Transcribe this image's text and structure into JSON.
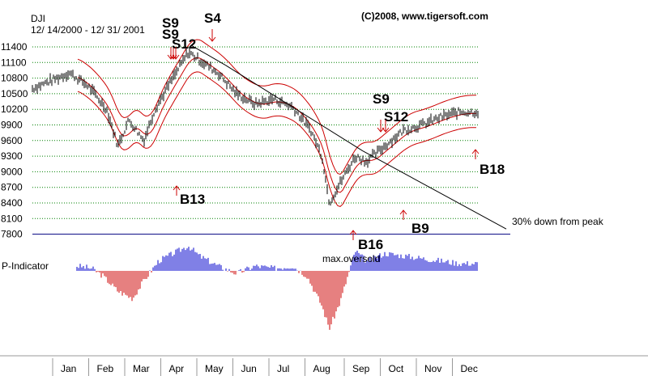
{
  "header": {
    "symbol": "DJI",
    "date_range": "12/ 14/2000 - 12/ 31/ 2001",
    "copyright": "(C)2008, www.tigersoft.com"
  },
  "indicator_label": "P-Indicator",
  "annotations": {
    "max_oversold": "max.oversold",
    "trendline_note": "30% down from peak"
  },
  "colors": {
    "price": "#000000",
    "bands": "#cc0000",
    "grid": "#008000",
    "baseline": "#000080",
    "positive": "#0000cc",
    "negative": "#cc0000",
    "signal_arrow": "#cc0000"
  },
  "chart_data": {
    "type": "line",
    "title": "DJI",
    "y_ticks": [
      11400,
      11100,
      10800,
      10500,
      10200,
      9900,
      9600,
      9300,
      9000,
      8700,
      8400,
      8100,
      7800
    ],
    "ylim": [
      7800,
      11600
    ],
    "months": [
      "Jan",
      "Feb",
      "Mar",
      "Apr",
      "May",
      "Jun",
      "Jul",
      "Aug",
      "Sep",
      "Oct",
      "Nov",
      "Dec"
    ],
    "grid": true,
    "series": [
      {
        "values": [
          {
            "m": 0.0,
            "v": 10600
          },
          {
            "m": 0.5,
            "v": 10750
          },
          {
            "m": 1.0,
            "v": 10900
          },
          {
            "m": 1.5,
            "v": 10650
          },
          {
            "m": 2.0,
            "v": 10200
          },
          {
            "m": 2.3,
            "v": 9500
          },
          {
            "m": 2.6,
            "v": 10000
          },
          {
            "m": 3.0,
            "v": 9600
          },
          {
            "m": 3.3,
            "v": 10200
          },
          {
            "m": 3.7,
            "v": 10700
          },
          {
            "m": 4.2,
            "v": 11300
          },
          {
            "m": 4.6,
            "v": 11100
          },
          {
            "m": 5.0,
            "v": 10900
          },
          {
            "m": 5.5,
            "v": 10500
          },
          {
            "m": 6.0,
            "v": 10300
          },
          {
            "m": 6.5,
            "v": 10400
          },
          {
            "m": 7.0,
            "v": 10250
          },
          {
            "m": 7.5,
            "v": 9800
          },
          {
            "m": 7.8,
            "v": 9300
          },
          {
            "m": 8.0,
            "v": 8400
          },
          {
            "m": 8.3,
            "v": 8800
          },
          {
            "m": 8.7,
            "v": 9300
          },
          {
            "m": 9.0,
            "v": 9200
          },
          {
            "m": 9.5,
            "v": 9500
          },
          {
            "m": 10.0,
            "v": 9800
          },
          {
            "m": 10.5,
            "v": 9900
          },
          {
            "m": 11.0,
            "v": 10050
          },
          {
            "m": 11.5,
            "v": 10150
          }
        ]
      }
    ],
    "signals": [
      {
        "label": "S9",
        "m": 3.1,
        "kind": "sell",
        "upper": true
      },
      {
        "label": "S9",
        "m": 3.1,
        "kind": "sell",
        "upper": true
      },
      {
        "label": "S12",
        "m": 3.3,
        "kind": "sell",
        "upper": true
      },
      {
        "label": "S4",
        "m": 4.2,
        "kind": "sell",
        "upper": true
      },
      {
        "label": "B13",
        "m": 3.1,
        "kind": "buy",
        "upper": false
      },
      {
        "label": "S9",
        "m": 8.5,
        "kind": "sell",
        "upper": true
      },
      {
        "label": "S12",
        "m": 8.8,
        "kind": "sell",
        "upper": true
      },
      {
        "label": "B16",
        "m": 8.0,
        "kind": "buy",
        "upper": false
      },
      {
        "label": "B9",
        "m": 9.7,
        "kind": "buy",
        "upper": false
      },
      {
        "label": "B18",
        "m": 11.7,
        "kind": "buy",
        "upper": false
      }
    ],
    "indicator": {
      "name": "P-Indicator",
      "values": [
        {
          "m": 0.0,
          "v": 55
        },
        {
          "m": 0.4,
          "v": 30
        },
        {
          "m": 0.8,
          "v": 25
        },
        {
          "m": 1.2,
          "v": 10
        },
        {
          "m": 1.6,
          "v": 5
        },
        {
          "m": 1.9,
          "v": -10
        },
        {
          "m": 2.3,
          "v": -40
        },
        {
          "m": 2.7,
          "v": -55
        },
        {
          "m": 3.0,
          "v": -20
        },
        {
          "m": 3.4,
          "v": 20
        },
        {
          "m": 3.8,
          "v": 35
        },
        {
          "m": 4.2,
          "v": 50
        },
        {
          "m": 4.5,
          "v": 30
        },
        {
          "m": 5.0,
          "v": 10
        },
        {
          "m": 5.5,
          "v": -5
        },
        {
          "m": 6.0,
          "v": 10
        },
        {
          "m": 6.5,
          "v": 5
        },
        {
          "m": 7.0,
          "v": 10
        },
        {
          "m": 7.4,
          "v": -10
        },
        {
          "m": 7.8,
          "v": -70
        },
        {
          "m": 8.0,
          "v": -115
        },
        {
          "m": 8.3,
          "v": -60
        },
        {
          "m": 8.7,
          "v": 40
        },
        {
          "m": 9.0,
          "v": 20
        },
        {
          "m": 9.5,
          "v": 35
        },
        {
          "m": 10.0,
          "v": 30
        },
        {
          "m": 10.5,
          "v": 25
        },
        {
          "m": 11.0,
          "v": 20
        },
        {
          "m": 11.5,
          "v": 15
        }
      ]
    }
  }
}
